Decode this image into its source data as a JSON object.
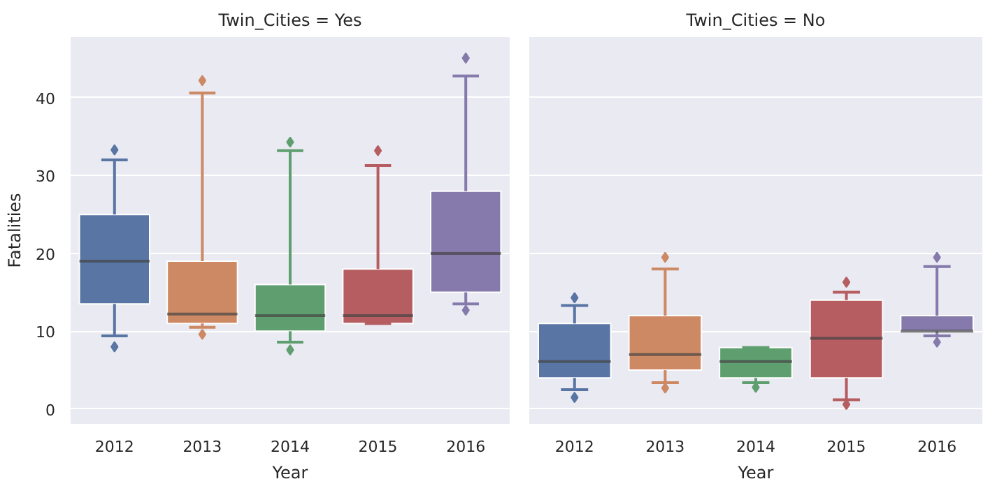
{
  "chart_data": [
    {
      "type": "box",
      "title": "Twin_Cities = Yes",
      "xlabel": "Year",
      "ylabel": "Fatalities",
      "categories": [
        "2012",
        "2013",
        "2014",
        "2015",
        "2016"
      ],
      "colors": [
        "#5975a4",
        "#cc8963",
        "#5f9e6e",
        "#b55d60",
        "#857aab"
      ],
      "boxes": [
        {
          "low": 9.4,
          "q1": 13.5,
          "median": 19,
          "q3": 25,
          "high": 32,
          "outliers": [
            8,
            33.3
          ]
        },
        {
          "low": 10.5,
          "q1": 11,
          "median": 12.2,
          "q3": 19,
          "high": 40.6,
          "outliers": [
            9.6,
            42.2
          ]
        },
        {
          "low": 8.6,
          "q1": 10,
          "median": 12,
          "q3": 16,
          "high": 33.2,
          "outliers": [
            7.6,
            34.3
          ]
        },
        {
          "low": 11,
          "q1": 11,
          "median": 12,
          "q3": 18,
          "high": 31.3,
          "outliers": [
            33.2
          ]
        },
        {
          "low": 13.5,
          "q1": 15,
          "median": 20,
          "q3": 28,
          "high": 42.8,
          "outliers": [
            12.7,
            45.1
          ]
        }
      ],
      "ylim": [
        -1.9,
        47.8
      ],
      "yticks": [
        0,
        10,
        20,
        30,
        40
      ],
      "grid": "y",
      "marker": "diamond"
    },
    {
      "type": "box",
      "title": "Twin_Cities = No",
      "xlabel": "Year",
      "categories": [
        "2012",
        "2013",
        "2014",
        "2015",
        "2016"
      ],
      "colors": [
        "#5975a4",
        "#cc8963",
        "#5f9e6e",
        "#b55d60",
        "#857aab"
      ],
      "boxes": [
        {
          "low": 2.5,
          "q1": 4,
          "median": 6.1,
          "q3": 11,
          "high": 13.3,
          "outliers": [
            1.5,
            14.3
          ]
        },
        {
          "low": 3.4,
          "q1": 5,
          "median": 7,
          "q3": 12,
          "high": 18,
          "outliers": [
            2.7,
            19.5
          ]
        },
        {
          "low": 3.4,
          "q1": 4,
          "median": 6.1,
          "q3": 7.9,
          "high": 7.9,
          "outliers": [
            2.8
          ]
        },
        {
          "low": 1.2,
          "q1": 4,
          "median": 9.1,
          "q3": 14,
          "high": 15,
          "outliers": [
            0.6,
            16.3
          ]
        },
        {
          "low": 9.4,
          "q1": 10,
          "median": 10,
          "q3": 12,
          "high": 18.3,
          "outliers": [
            8.6,
            19.5
          ]
        }
      ],
      "ylim": [
        -1.9,
        47.8
      ],
      "yticks": [
        0,
        10,
        20,
        30,
        40
      ],
      "grid": "y",
      "marker": "diamond",
      "tick_labels": "x"
    }
  ]
}
